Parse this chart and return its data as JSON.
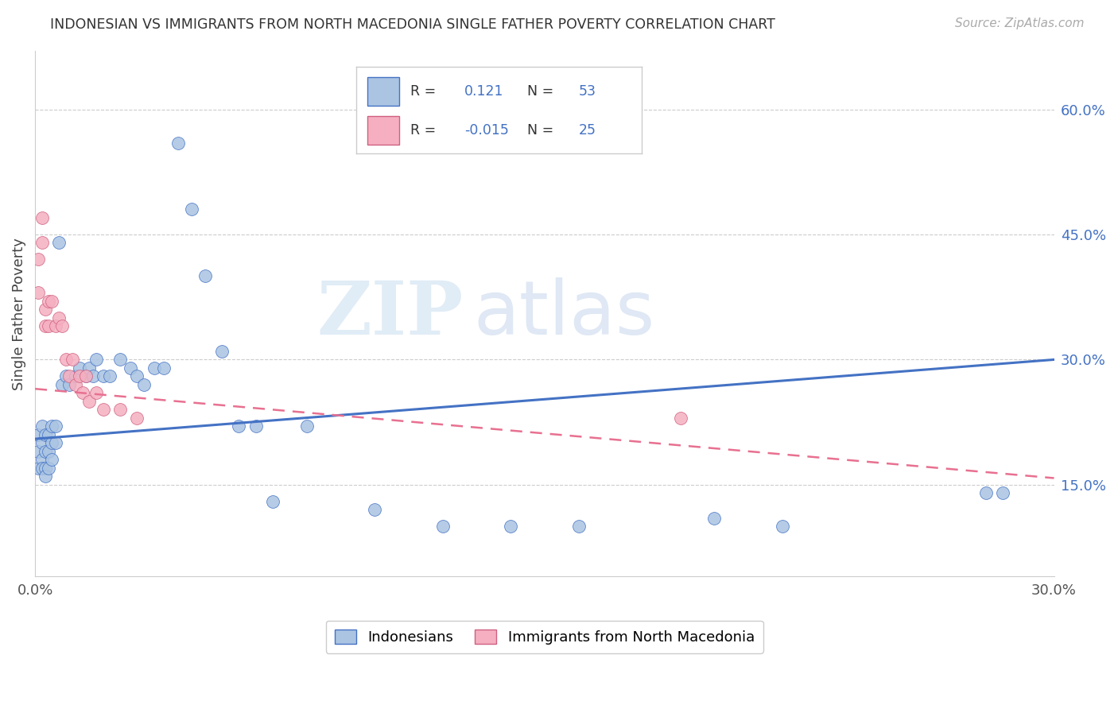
{
  "title": "INDONESIAN VS IMMIGRANTS FROM NORTH MACEDONIA SINGLE FATHER POVERTY CORRELATION CHART",
  "source": "Source: ZipAtlas.com",
  "ylabel": "Single Father Poverty",
  "yticks": [
    "15.0%",
    "30.0%",
    "45.0%",
    "60.0%"
  ],
  "ytick_vals": [
    0.15,
    0.3,
    0.45,
    0.6
  ],
  "xlim": [
    0.0,
    0.3
  ],
  "ylim": [
    0.04,
    0.67
  ],
  "legend_label1": "Indonesians",
  "legend_label2": "Immigrants from North Macedonia",
  "R1": "0.121",
  "N1": "53",
  "R2": "-0.015",
  "N2": "25",
  "color_blue": "#aac4e2",
  "color_pink": "#f5afc0",
  "line_blue": "#4472c4",
  "line_pink": "#e87090",
  "blue_line_y0": 0.205,
  "blue_line_y1": 0.3,
  "pink_line_y0": 0.265,
  "pink_line_y1": 0.158,
  "indonesian_x": [
    0.001,
    0.001,
    0.001,
    0.002,
    0.002,
    0.002,
    0.002,
    0.003,
    0.003,
    0.003,
    0.003,
    0.004,
    0.004,
    0.004,
    0.005,
    0.005,
    0.005,
    0.006,
    0.006,
    0.007,
    0.008,
    0.009,
    0.01,
    0.012,
    0.013,
    0.015,
    0.016,
    0.017,
    0.018,
    0.02,
    0.022,
    0.025,
    0.028,
    0.03,
    0.032,
    0.035,
    0.038,
    0.042,
    0.046,
    0.05,
    0.055,
    0.06,
    0.065,
    0.07,
    0.08,
    0.1,
    0.12,
    0.14,
    0.16,
    0.2,
    0.22,
    0.28,
    0.285
  ],
  "indonesian_y": [
    0.21,
    0.19,
    0.17,
    0.22,
    0.2,
    0.18,
    0.17,
    0.21,
    0.19,
    0.17,
    0.16,
    0.21,
    0.19,
    0.17,
    0.22,
    0.2,
    0.18,
    0.22,
    0.2,
    0.44,
    0.27,
    0.28,
    0.27,
    0.28,
    0.29,
    0.28,
    0.29,
    0.28,
    0.3,
    0.28,
    0.28,
    0.3,
    0.29,
    0.28,
    0.27,
    0.29,
    0.29,
    0.56,
    0.48,
    0.4,
    0.31,
    0.22,
    0.22,
    0.13,
    0.22,
    0.12,
    0.1,
    0.1,
    0.1,
    0.11,
    0.1,
    0.14,
    0.14
  ],
  "macedonia_x": [
    0.001,
    0.001,
    0.002,
    0.002,
    0.003,
    0.003,
    0.004,
    0.004,
    0.005,
    0.006,
    0.007,
    0.008,
    0.009,
    0.01,
    0.011,
    0.012,
    0.013,
    0.014,
    0.015,
    0.016,
    0.018,
    0.02,
    0.025,
    0.03,
    0.19
  ],
  "macedonia_y": [
    0.42,
    0.38,
    0.47,
    0.44,
    0.36,
    0.34,
    0.37,
    0.34,
    0.37,
    0.34,
    0.35,
    0.34,
    0.3,
    0.28,
    0.3,
    0.27,
    0.28,
    0.26,
    0.28,
    0.25,
    0.26,
    0.24,
    0.24,
    0.23,
    0.23
  ]
}
